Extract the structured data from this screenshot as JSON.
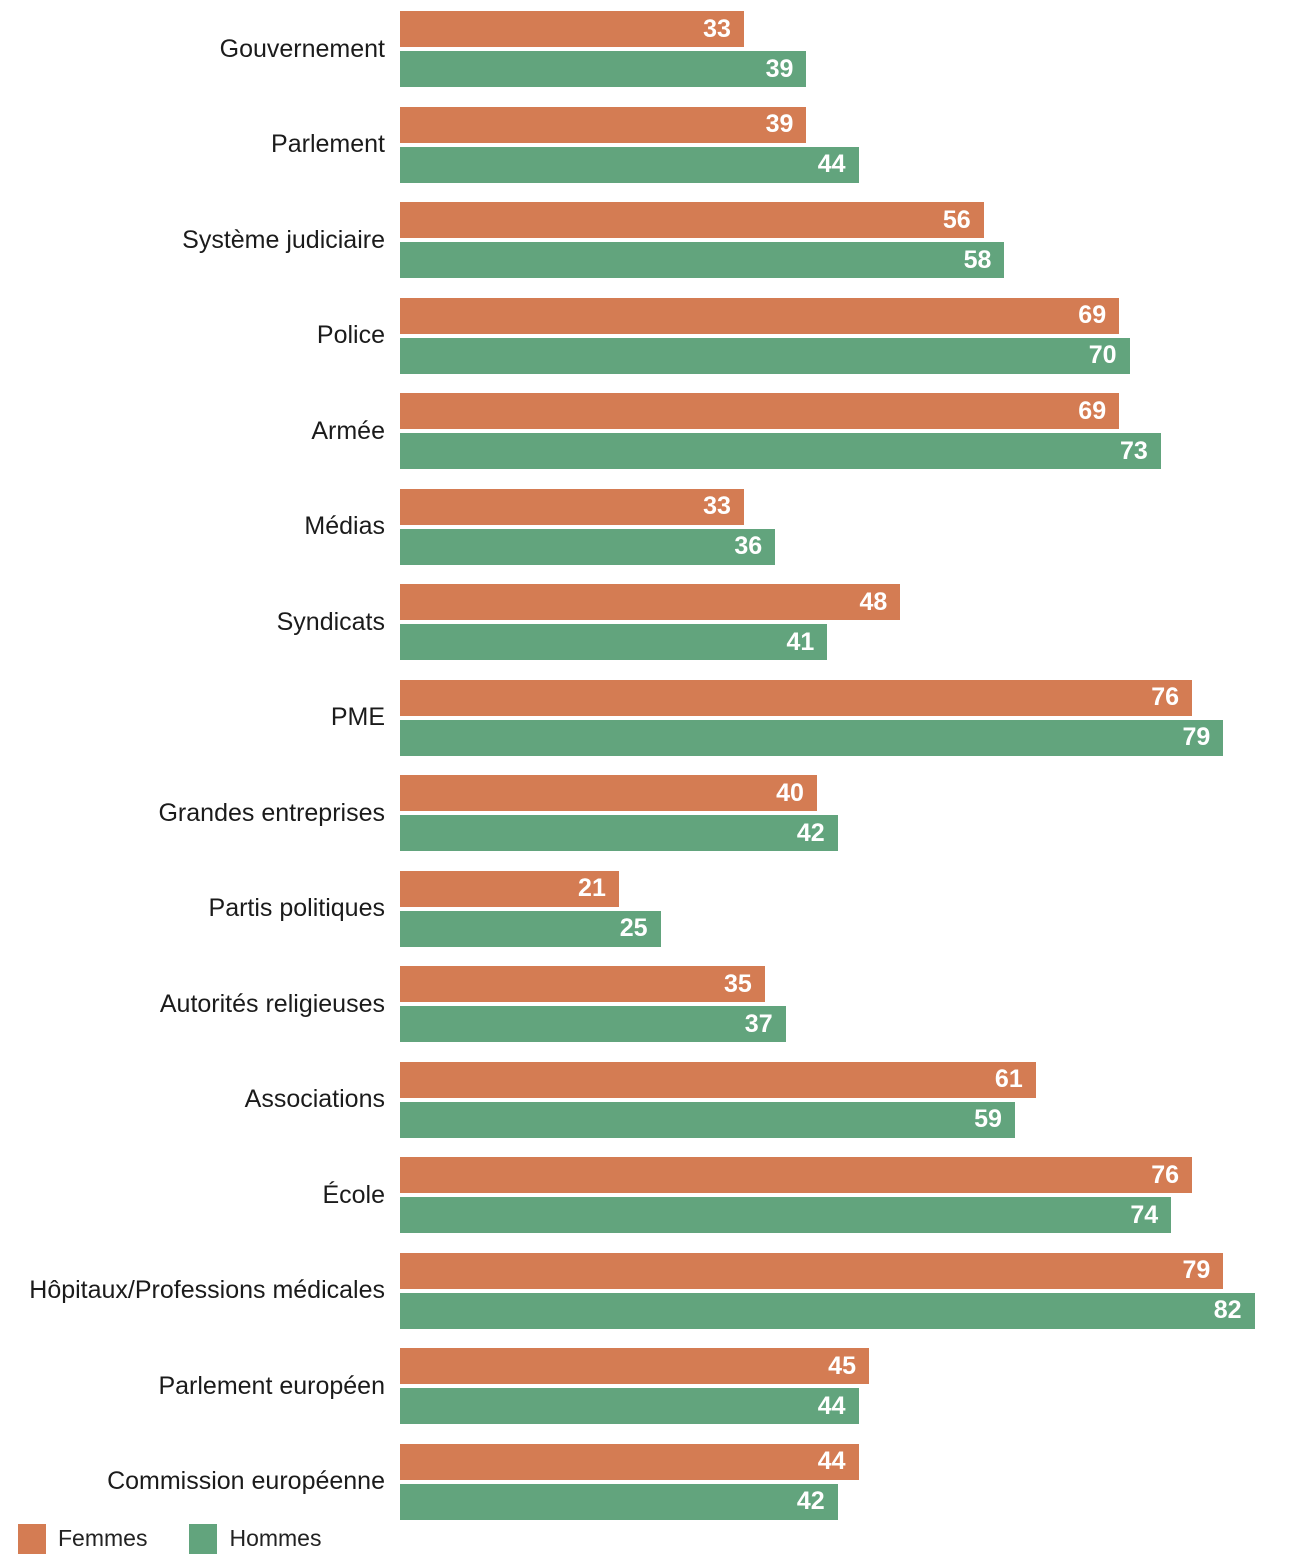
{
  "chart_data": {
    "type": "bar",
    "orientation": "horizontal",
    "title": "",
    "xlabel": "",
    "ylabel": "",
    "grid": false,
    "legend_position": "bottom-left",
    "value_labels": "inside-end",
    "xlim": [
      0,
      87.7
    ],
    "categories": [
      "Gouvernement",
      "Parlement",
      "Système judiciaire",
      "Police",
      "Armée",
      "Médias",
      "Syndicats",
      "PME",
      "Grandes entreprises",
      "Partis politiques",
      "Autorités religieuses",
      "Associations",
      "École",
      "Hôpitaux/Professions médicales",
      "Parlement européen",
      "Commission européenne"
    ],
    "series": [
      {
        "name": "Femmes",
        "color": "#d47c53",
        "values": [
          33,
          39,
          56,
          69,
          69,
          33,
          48,
          76,
          40,
          21,
          35,
          61,
          76,
          79,
          45,
          44
        ]
      },
      {
        "name": "Hommes",
        "color": "#62a47d",
        "values": [
          39,
          44,
          58,
          70,
          73,
          36,
          41,
          79,
          42,
          25,
          37,
          59,
          74,
          82,
          44,
          42
        ]
      }
    ]
  },
  "legend": {
    "items": [
      {
        "label": "Femmes",
        "color": "#d47c53"
      },
      {
        "label": "Hommes",
        "color": "#62a47d"
      }
    ]
  },
  "value_label_color": "#ffffff"
}
